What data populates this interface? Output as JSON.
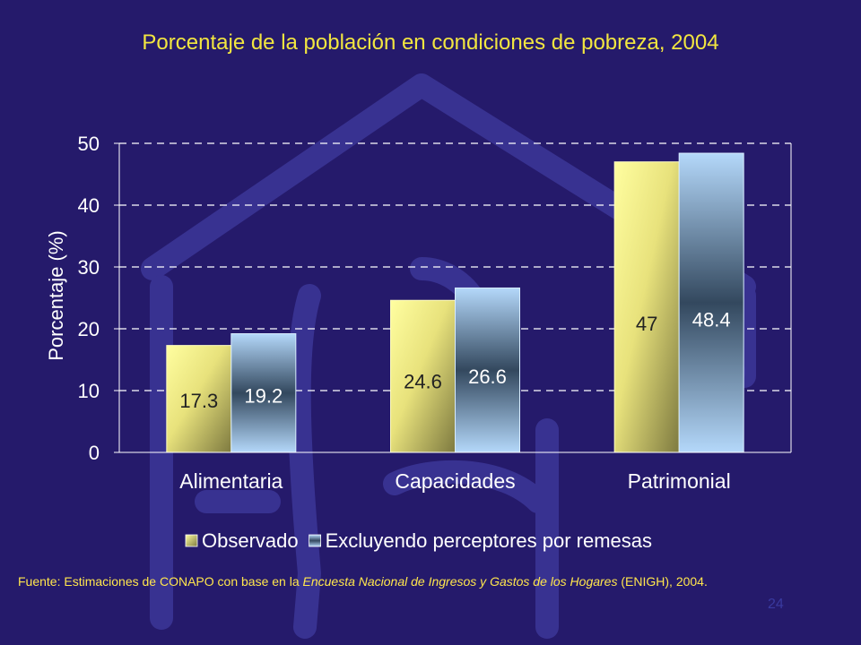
{
  "slide": {
    "title": "Porcentaje de la población en condiciones de pobreza, 2004",
    "source_prefix": "Fuente: Estimaciones de CONAPO con base en la ",
    "source_italic": "Encuesta Nacional de Ingresos y Gastos de los Hogares",
    "source_suffix": " (ENIGH), 2004.",
    "page_number": "24"
  },
  "colors": {
    "background": "#251a6b",
    "title": "#f2e640",
    "observado": "#f4f28a",
    "excluyendo": "#a8cff4",
    "watermark": "#3b3596"
  },
  "chart_data": {
    "type": "bar",
    "categories": [
      "Alimentaria",
      "Capacidades",
      "Patrimonial"
    ],
    "series": [
      {
        "name": "Observado",
        "values": [
          17.3,
          24.6,
          47
        ]
      },
      {
        "name": "Excluyendo perceptores por remesas",
        "values": [
          19.2,
          26.6,
          48.4
        ]
      }
    ],
    "ylabel": "Porcentaje (%)",
    "ylim": [
      0,
      50
    ],
    "yticks": [
      0,
      10,
      20,
      30,
      40,
      50
    ],
    "grid": true,
    "legend": "bottom",
    "data_labels": true
  }
}
